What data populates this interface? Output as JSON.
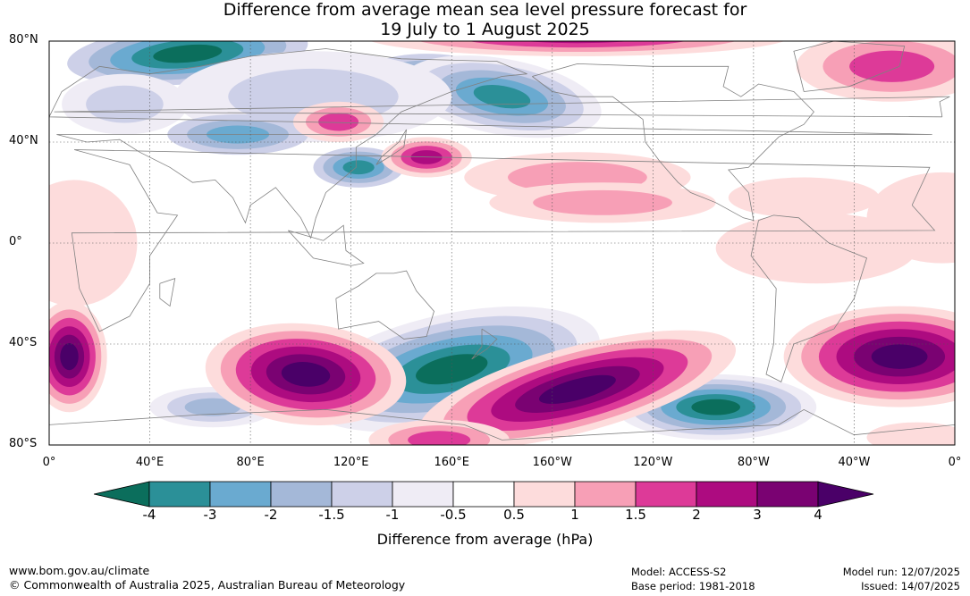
{
  "title": {
    "line1": "Difference from average mean sea level pressure forecast for",
    "line2": "19 July to 1 August 2025"
  },
  "map": {
    "lat_labels": [
      "80°N",
      "40°N",
      "0°",
      "40°S",
      "80°S"
    ],
    "lat_values": [
      80,
      40,
      0,
      -40,
      -80
    ],
    "lon_labels": [
      "0°",
      "40°E",
      "80°E",
      "120°E",
      "160°E",
      "160°W",
      "120°W",
      "80°W",
      "40°W",
      "0°"
    ],
    "lon_values": [
      0,
      40,
      80,
      120,
      160,
      200,
      240,
      280,
      320,
      360
    ],
    "gridlines": true,
    "coastline_color": "#808080"
  },
  "colorbar": {
    "title": "Difference from average (hPa)",
    "tick_labels": [
      "-4",
      "-3",
      "-2",
      "-1.5",
      "-1",
      "-0.5",
      "0.5",
      "1",
      "1.5",
      "2",
      "3",
      "4"
    ],
    "colors": [
      "#0b6e5c",
      "#2b9098",
      "#6aaad0",
      "#a4b8d8",
      "#cdd0e8",
      "#efecf5",
      "#ffffff",
      "#fddcdc",
      "#f79fb6",
      "#dd3a98",
      "#ad0b80",
      "#7a0272",
      "#4a0068"
    ]
  },
  "footer": {
    "website": "www.bom.gov.au/climate",
    "copyright": "© Commonwealth of Australia 2025, Australian Bureau of Meteorology",
    "model": "Model: ACCESS-S2",
    "base_period": "Base period: 1981-2018",
    "model_run": "Model run: 12/07/2025",
    "issued": "Issued: 14/07/2025"
  }
}
